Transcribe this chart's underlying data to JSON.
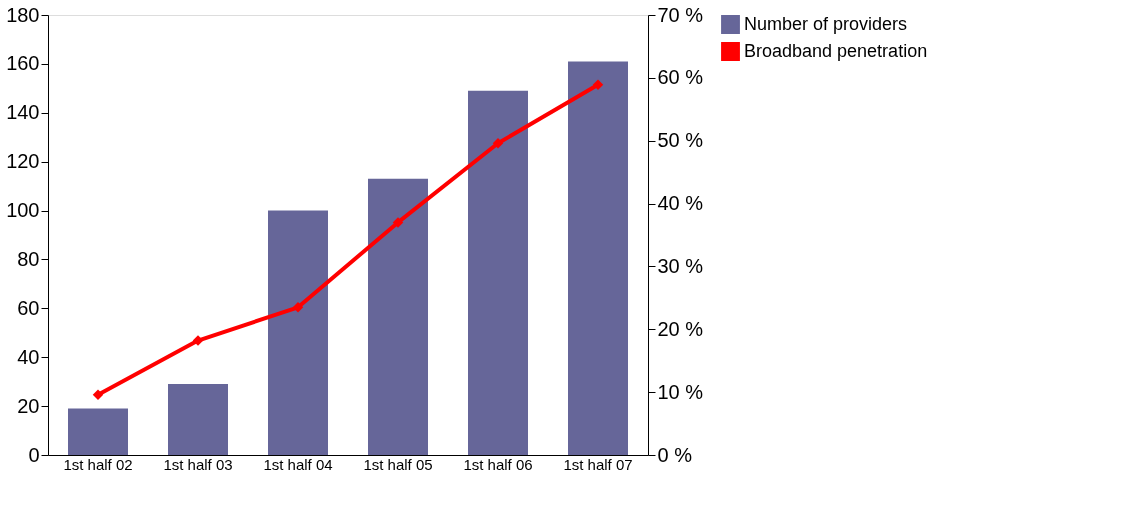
{
  "chart_data": {
    "type": "bar",
    "categories": [
      "1st half 02",
      "1st half 03",
      "1st half 04",
      "1st half 05",
      "1st half 06",
      "1st half 07"
    ],
    "series": [
      {
        "name": "Number of providers",
        "color": "#666699",
        "values": [
          19,
          29,
          100,
          113,
          149,
          161
        ]
      },
      {
        "name": "Broadband penetration",
        "type": "line",
        "axis": "y2",
        "color": "#ff0000",
        "marker": "diamond",
        "line_style": "solid",
        "values": [
          9.6,
          18.2,
          23.5,
          37.0,
          49.6,
          58.9
        ]
      }
    ],
    "ylim": [
      0,
      180
    ],
    "yticks": [
      0,
      20,
      40,
      60,
      80,
      100,
      120,
      140,
      160,
      180
    ],
    "y2lim": [
      0,
      70
    ],
    "y2ticks": [
      {
        "value": 0,
        "label": "0 %"
      },
      {
        "value": 10,
        "label": "10 %"
      },
      {
        "value": 20,
        "label": "20 %"
      },
      {
        "value": 30,
        "label": "30 %"
      },
      {
        "value": 40,
        "label": "40 %"
      },
      {
        "value": 50,
        "label": "50 %"
      },
      {
        "value": 60,
        "label": "60 %"
      },
      {
        "value": 70,
        "label": "70 %"
      }
    ],
    "grid": false,
    "legend": "right"
  }
}
